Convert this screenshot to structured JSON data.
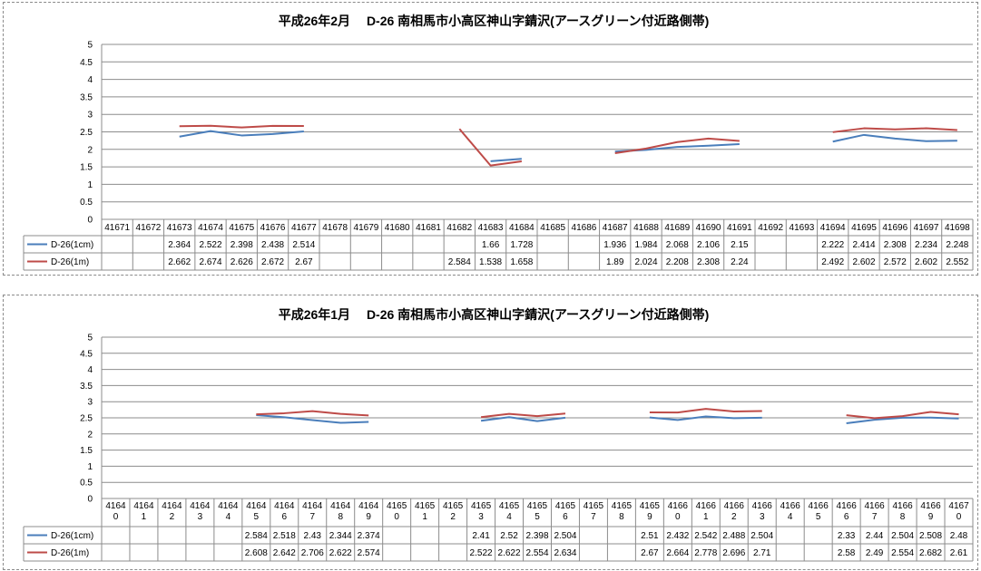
{
  "chart_data": [
    {
      "type": "line",
      "title": "平成26年2月　 D-26 南相馬市小高区神山字錆沢(アースグリーン付近路側帯)",
      "ylim": [
        0,
        5
      ],
      "yticks": [
        "0",
        "0.5",
        "1",
        "1.5",
        "2",
        "2.5",
        "3",
        "3.5",
        "4",
        "4.5",
        "5"
      ],
      "grid": true,
      "legend": "data-table",
      "x": [
        "41671",
        "41672",
        "41673",
        "41674",
        "41675",
        "41676",
        "41677",
        "41678",
        "41679",
        "41680",
        "41681",
        "41682",
        "41683",
        "41684",
        "41685",
        "41686",
        "41687",
        "41688",
        "41689",
        "41690",
        "41691",
        "41692",
        "41693",
        "41694",
        "41695",
        "41696",
        "41697",
        "41698"
      ],
      "series": [
        {
          "name": "D-26(1cm)",
          "color": "#4a7ebb",
          "values": [
            null,
            null,
            2.364,
            2.522,
            2.398,
            2.438,
            2.514,
            null,
            null,
            null,
            null,
            null,
            1.66,
            1.728,
            null,
            null,
            1.936,
            1.984,
            2.068,
            2.106,
            2.15,
            null,
            null,
            2.222,
            2.414,
            2.308,
            2.234,
            2.248
          ],
          "labels": [
            "",
            "",
            "2.364",
            "2.522",
            "2.398",
            "2.438",
            "2.514",
            "",
            "",
            "",
            "",
            "",
            "1.66",
            "1.728",
            "",
            "",
            "1.936",
            "1.984",
            "2.068",
            "2.106",
            "2.15",
            "",
            "",
            "2.222",
            "2.414",
            "2.308",
            "2.234",
            "2.248"
          ]
        },
        {
          "name": "D-26(1m)",
          "color": "#be4b48",
          "values": [
            null,
            null,
            2.662,
            2.674,
            2.626,
            2.672,
            2.67,
            null,
            null,
            null,
            null,
            2.584,
            1.538,
            1.658,
            null,
            null,
            1.89,
            2.024,
            2.208,
            2.308,
            2.24,
            null,
            null,
            2.492,
            2.602,
            2.572,
            2.602,
            2.552
          ],
          "labels": [
            "",
            "",
            "2.662",
            "2.674",
            "2.626",
            "2.672",
            "2.67",
            "",
            "",
            "",
            "",
            "2.584",
            "1.538",
            "1.658",
            "",
            "",
            "1.89",
            "2.024",
            "2.208",
            "2.308",
            "2.24",
            "",
            "",
            "2.492",
            "2.602",
            "2.572",
            "2.602",
            "2.552"
          ]
        }
      ]
    },
    {
      "type": "line",
      "title": "平成26年1月　 D-26 南相馬市小高区神山字錆沢(アースグリーン付近路側帯)",
      "ylim": [
        0,
        5
      ],
      "yticks": [
        "0",
        "0.5",
        "1",
        "1.5",
        "2",
        "2.5",
        "3",
        "3.5",
        "4",
        "4.5",
        "5"
      ],
      "grid": true,
      "legend": "data-table",
      "x": [
        "41640",
        "41641",
        "41642",
        "41643",
        "41644",
        "41645",
        "41646",
        "41647",
        "41648",
        "41649",
        "41650",
        "41651",
        "41652",
        "41653",
        "41654",
        "41655",
        "41656",
        "41657",
        "41658",
        "41659",
        "41660",
        "41661",
        "41662",
        "41663",
        "41664",
        "41665",
        "41666",
        "41667",
        "41668",
        "41669",
        "41670"
      ],
      "series": [
        {
          "name": "D-26(1cm)",
          "color": "#4a7ebb",
          "values": [
            null,
            null,
            null,
            null,
            null,
            2.584,
            2.518,
            2.43,
            2.344,
            2.374,
            null,
            null,
            null,
            2.41,
            2.52,
            2.398,
            2.504,
            null,
            null,
            2.51,
            2.432,
            2.542,
            2.488,
            2.504,
            null,
            null,
            2.33,
            2.44,
            2.504,
            2.508,
            2.48
          ],
          "labels": [
            "",
            "",
            "",
            "",
            "",
            "2.584",
            "2.518",
            "2.43",
            "2.344",
            "2.374",
            "",
            "",
            "",
            "2.41",
            "2.52",
            "2.398",
            "2.504",
            "",
            "",
            "2.51",
            "2.432",
            "2.542",
            "2.488",
            "2.504",
            "",
            "",
            "2.33",
            "2.44",
            "2.504",
            "2.508",
            "2.48"
          ]
        },
        {
          "name": "D-26(1m)",
          "color": "#be4b48",
          "values": [
            null,
            null,
            null,
            null,
            null,
            2.608,
            2.642,
            2.706,
            2.622,
            2.574,
            null,
            null,
            null,
            2.522,
            2.622,
            2.554,
            2.634,
            null,
            null,
            2.67,
            2.664,
            2.778,
            2.696,
            2.71,
            null,
            null,
            2.58,
            2.49,
            2.554,
            2.682,
            2.61
          ],
          "labels": [
            "",
            "",
            "",
            "",
            "",
            "2.608",
            "2.642",
            "2.706",
            "2.622",
            "2.574",
            "",
            "",
            "",
            "2.522",
            "2.622",
            "2.554",
            "2.634",
            "",
            "",
            "2.67",
            "2.664",
            "2.778",
            "2.696",
            "2.71",
            "",
            "",
            "2.58",
            "2.49",
            "2.554",
            "2.682",
            "2.61"
          ]
        }
      ]
    }
  ]
}
